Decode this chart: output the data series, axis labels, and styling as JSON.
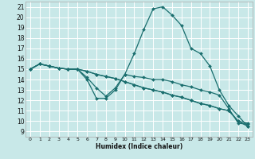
{
  "title": "",
  "xlabel": "Humidex (Indice chaleur)",
  "xlim": [
    -0.5,
    23.5
  ],
  "ylim": [
    8.5,
    21.5
  ],
  "xticks": [
    0,
    1,
    2,
    3,
    4,
    5,
    6,
    7,
    8,
    9,
    10,
    11,
    12,
    13,
    14,
    15,
    16,
    17,
    18,
    19,
    20,
    21,
    22,
    23
  ],
  "yticks": [
    9,
    10,
    11,
    12,
    13,
    14,
    15,
    16,
    17,
    18,
    19,
    20,
    21
  ],
  "bg_color": "#c8e8e8",
  "grid_color": "#ffffff",
  "line_color": "#1a6e6e",
  "series": [
    [
      15.0,
      15.5,
      15.3,
      15.1,
      15.0,
      15.0,
      14.0,
      12.2,
      12.2,
      13.0,
      14.5,
      16.5,
      18.8,
      20.8,
      21.0,
      20.2,
      19.2,
      17.0,
      16.5,
      15.3,
      13.0,
      11.5,
      10.5,
      9.5
    ],
    [
      15.0,
      15.5,
      15.3,
      15.1,
      15.0,
      15.0,
      14.2,
      13.2,
      12.4,
      13.2,
      14.5,
      14.3,
      14.2,
      14.0,
      14.0,
      13.8,
      13.5,
      13.3,
      13.0,
      12.8,
      12.5,
      11.2,
      9.8,
      9.7
    ],
    [
      15.0,
      15.5,
      15.3,
      15.1,
      15.0,
      15.0,
      14.8,
      14.5,
      14.3,
      14.1,
      13.8,
      13.5,
      13.2,
      13.0,
      12.8,
      12.5,
      12.3,
      12.0,
      11.7,
      11.5,
      11.2,
      11.0,
      10.0,
      9.5
    ],
    [
      15.0,
      15.5,
      15.3,
      15.1,
      15.0,
      15.0,
      14.8,
      14.5,
      14.3,
      14.1,
      13.8,
      13.5,
      13.2,
      13.0,
      12.8,
      12.5,
      12.3,
      12.0,
      11.7,
      11.5,
      11.2,
      11.0,
      10.0,
      9.8
    ]
  ]
}
